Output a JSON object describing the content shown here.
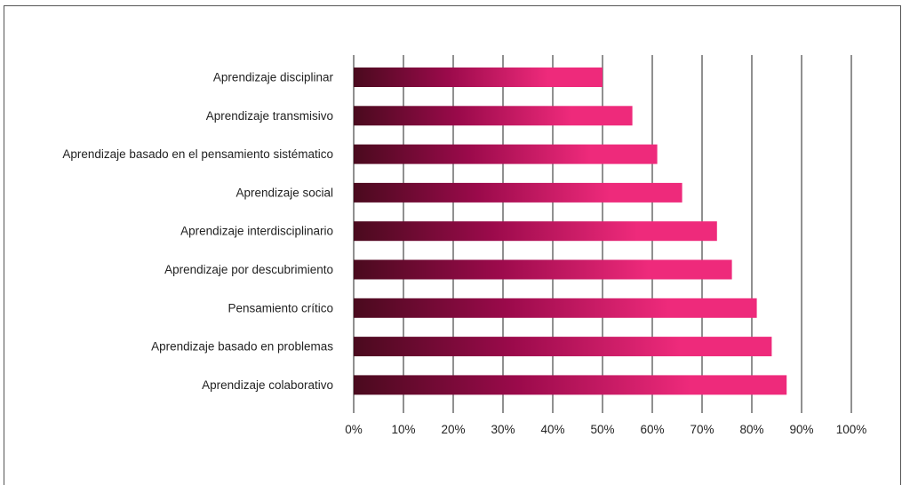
{
  "chart_data": {
    "type": "bar",
    "orientation": "horizontal",
    "categories": [
      "Aprendizaje disciplinar",
      "Aprendizaje transmisivo",
      "Aprendizaje basado en el pensamiento sistématico",
      "Aprendizaje social",
      "Aprendizaje interdisciplinario",
      "Aprendizaje por descubrimiento",
      "Pensamiento crítico",
      "Aprendizaje basado en problemas",
      "Aprendizaje colaborativo"
    ],
    "values": [
      50,
      56,
      61,
      66,
      73,
      76,
      81,
      84,
      87
    ],
    "xlim": [
      0,
      100
    ],
    "xticks": [
      0,
      10,
      20,
      30,
      40,
      50,
      60,
      70,
      80,
      90,
      100
    ],
    "tick_format": "{v}%",
    "grid": "vertical",
    "legend": "none",
    "colors": {
      "bar_start": "#4a0a1e",
      "bar_mid": "#9b0a4b",
      "bar_end": "#ee2a7b",
      "grid": "#222222",
      "text": "#222222"
    }
  }
}
